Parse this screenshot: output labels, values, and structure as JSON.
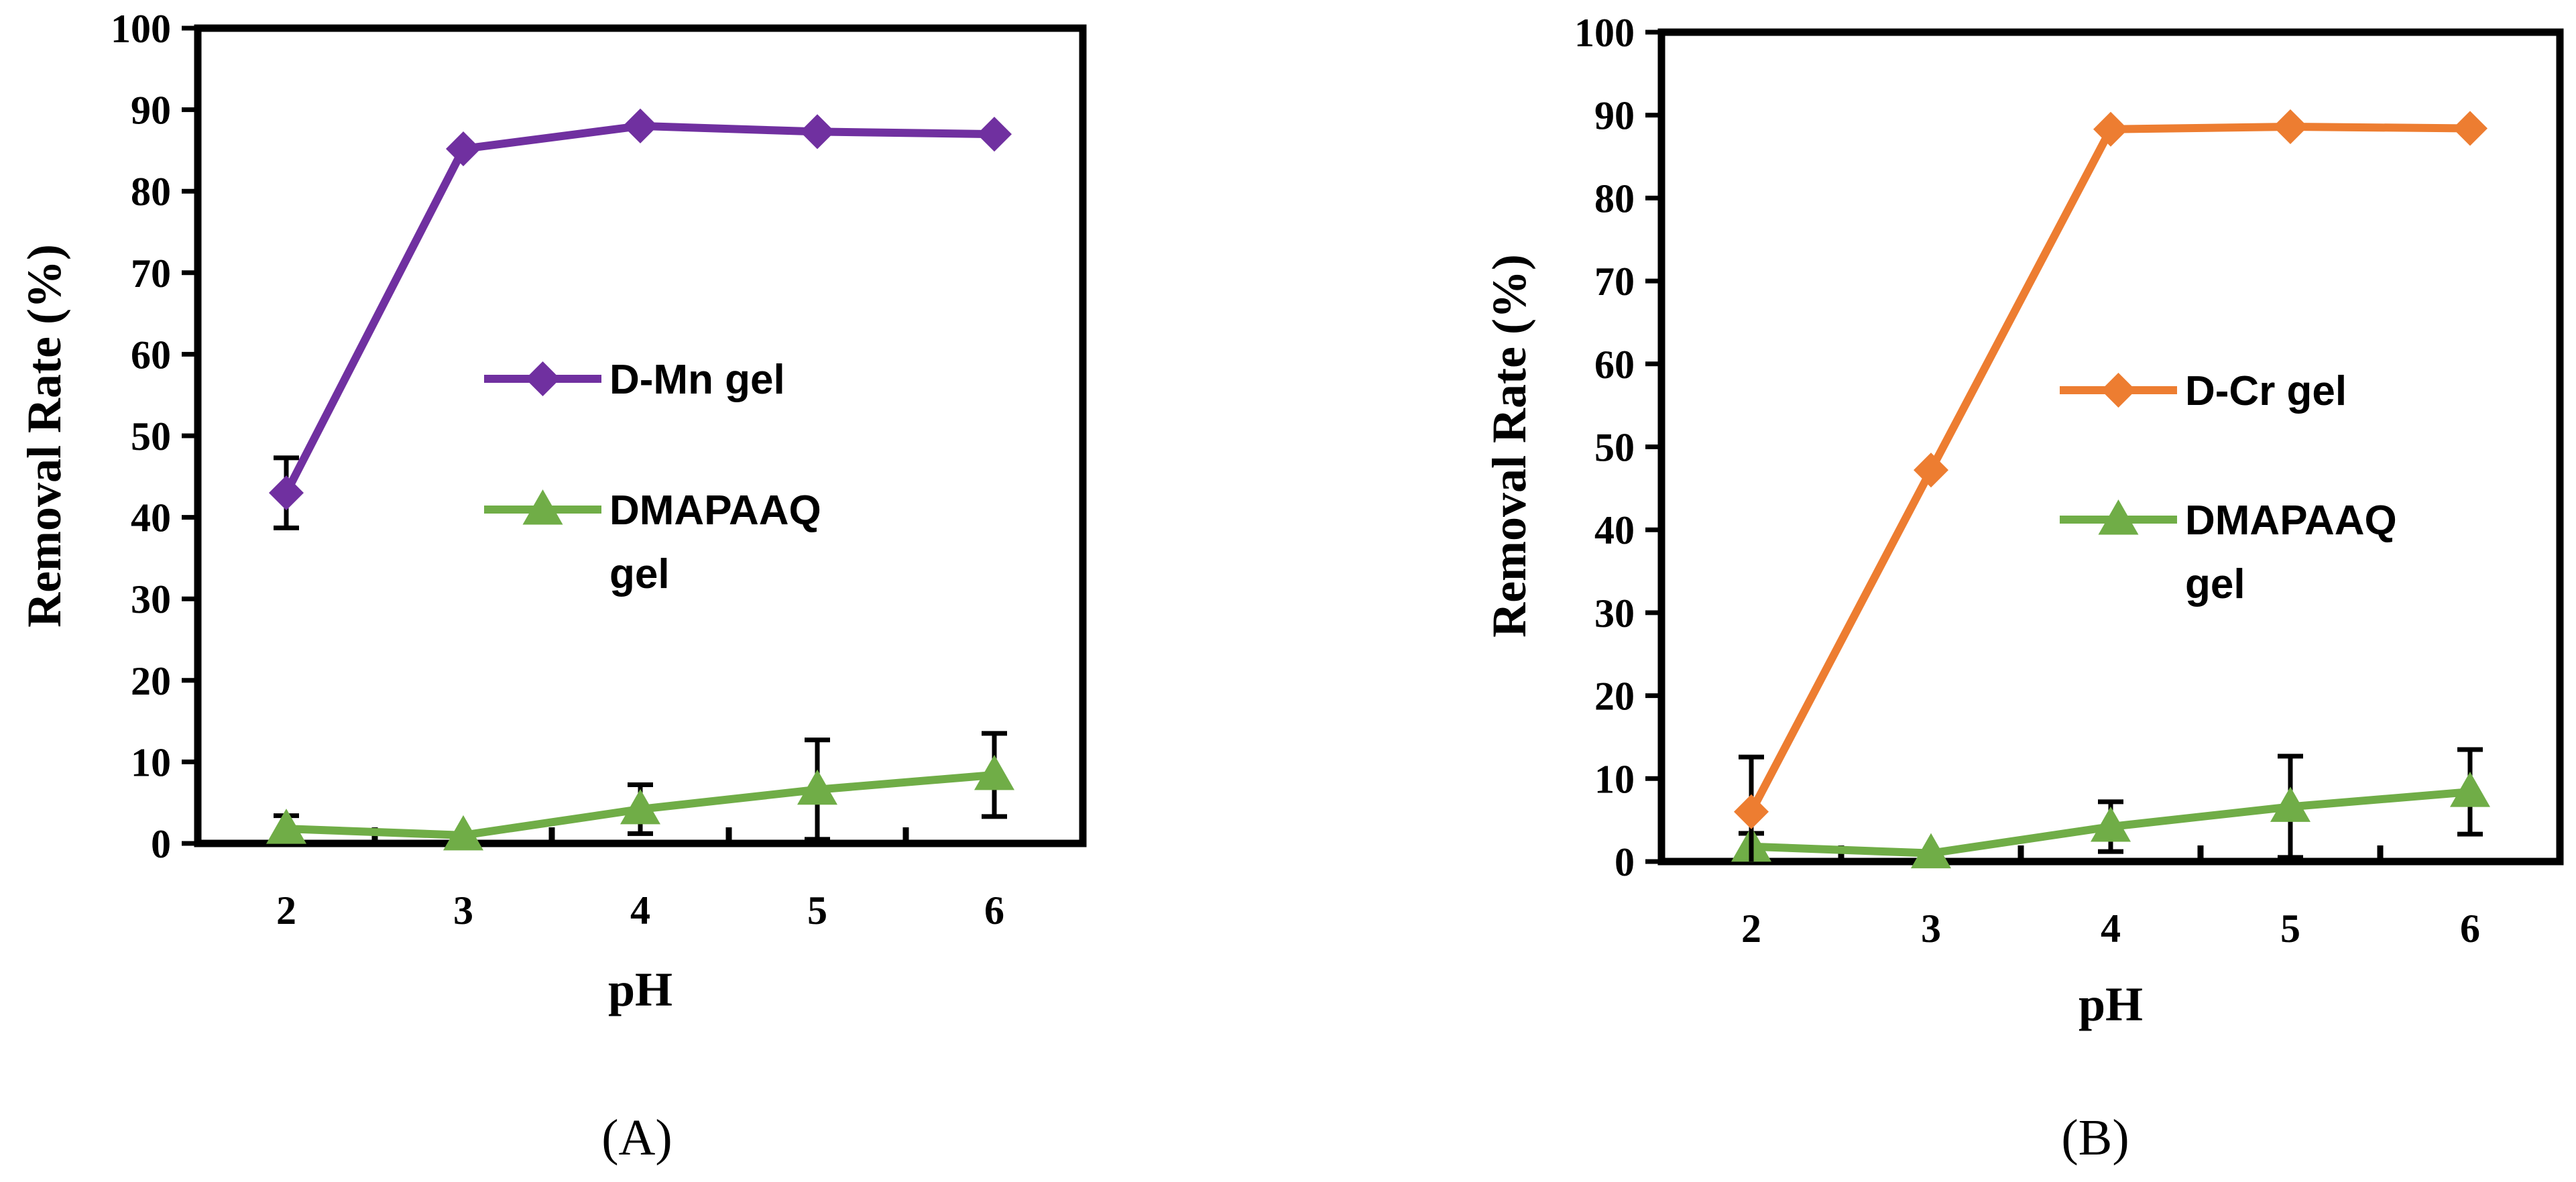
{
  "chart_data": [
    {
      "type": "line",
      "panel_label": "(A)",
      "panel_letter": "A",
      "xlabel": "pH",
      "ylabel": "Removal Rate (%)",
      "xlim": [
        1.5,
        6.5
      ],
      "ylim": [
        0,
        100
      ],
      "x_ticks": [
        2,
        3,
        4,
        5,
        6
      ],
      "y_ticks": [
        0,
        10,
        20,
        30,
        40,
        50,
        60,
        70,
        80,
        90,
        100
      ],
      "legend_position": "center",
      "series": [
        {
          "name": "D-Mn gel",
          "legend_lines": [
            "D-Mn gel"
          ],
          "color": "#7030A0",
          "marker": "diamond",
          "x": [
            2,
            3,
            4,
            5,
            6
          ],
          "values": [
            43,
            85.2,
            88,
            87.3,
            87
          ],
          "errors": [
            4.3,
            0,
            0,
            0,
            0
          ]
        },
        {
          "name": "DMAPAAQ gel",
          "legend_lines": [
            "DMAPAAQ",
            "gel"
          ],
          "color": "#70AD47",
          "marker": "triangle",
          "x": [
            2,
            3,
            4,
            5,
            6
          ],
          "values": [
            1.8,
            1.0,
            4.2,
            6.6,
            8.4
          ],
          "errors": [
            1.6,
            0,
            3.0,
            6.1,
            5.1
          ]
        }
      ]
    },
    {
      "type": "line",
      "panel_label": "(B)",
      "panel_letter": "B",
      "xlabel": "pH",
      "ylabel": "Removal Rate (%)",
      "xlim": [
        1.5,
        6.5
      ],
      "ylim": [
        0,
        100
      ],
      "x_ticks": [
        2,
        3,
        4,
        5,
        6
      ],
      "y_ticks": [
        0,
        10,
        20,
        30,
        40,
        50,
        60,
        70,
        80,
        90,
        100
      ],
      "legend_position": "center",
      "series": [
        {
          "name": "D-Cr gel",
          "legend_lines": [
            "D-Cr gel"
          ],
          "color": "#ED7D31",
          "marker": "diamond",
          "x": [
            2,
            3,
            4,
            5,
            6
          ],
          "values": [
            6,
            47.2,
            88.3,
            88.6,
            88.4
          ],
          "errors": [
            6.6,
            0,
            0,
            0,
            0
          ]
        },
        {
          "name": "DMAPAAQ gel",
          "legend_lines": [
            "DMAPAAQ",
            "gel"
          ],
          "color": "#70AD47",
          "marker": "triangle",
          "x": [
            2,
            3,
            4,
            5,
            6
          ],
          "values": [
            1.8,
            1.0,
            4.2,
            6.6,
            8.4
          ],
          "errors": [
            1.6,
            0,
            3.0,
            6.1,
            5.1
          ]
        }
      ]
    }
  ]
}
